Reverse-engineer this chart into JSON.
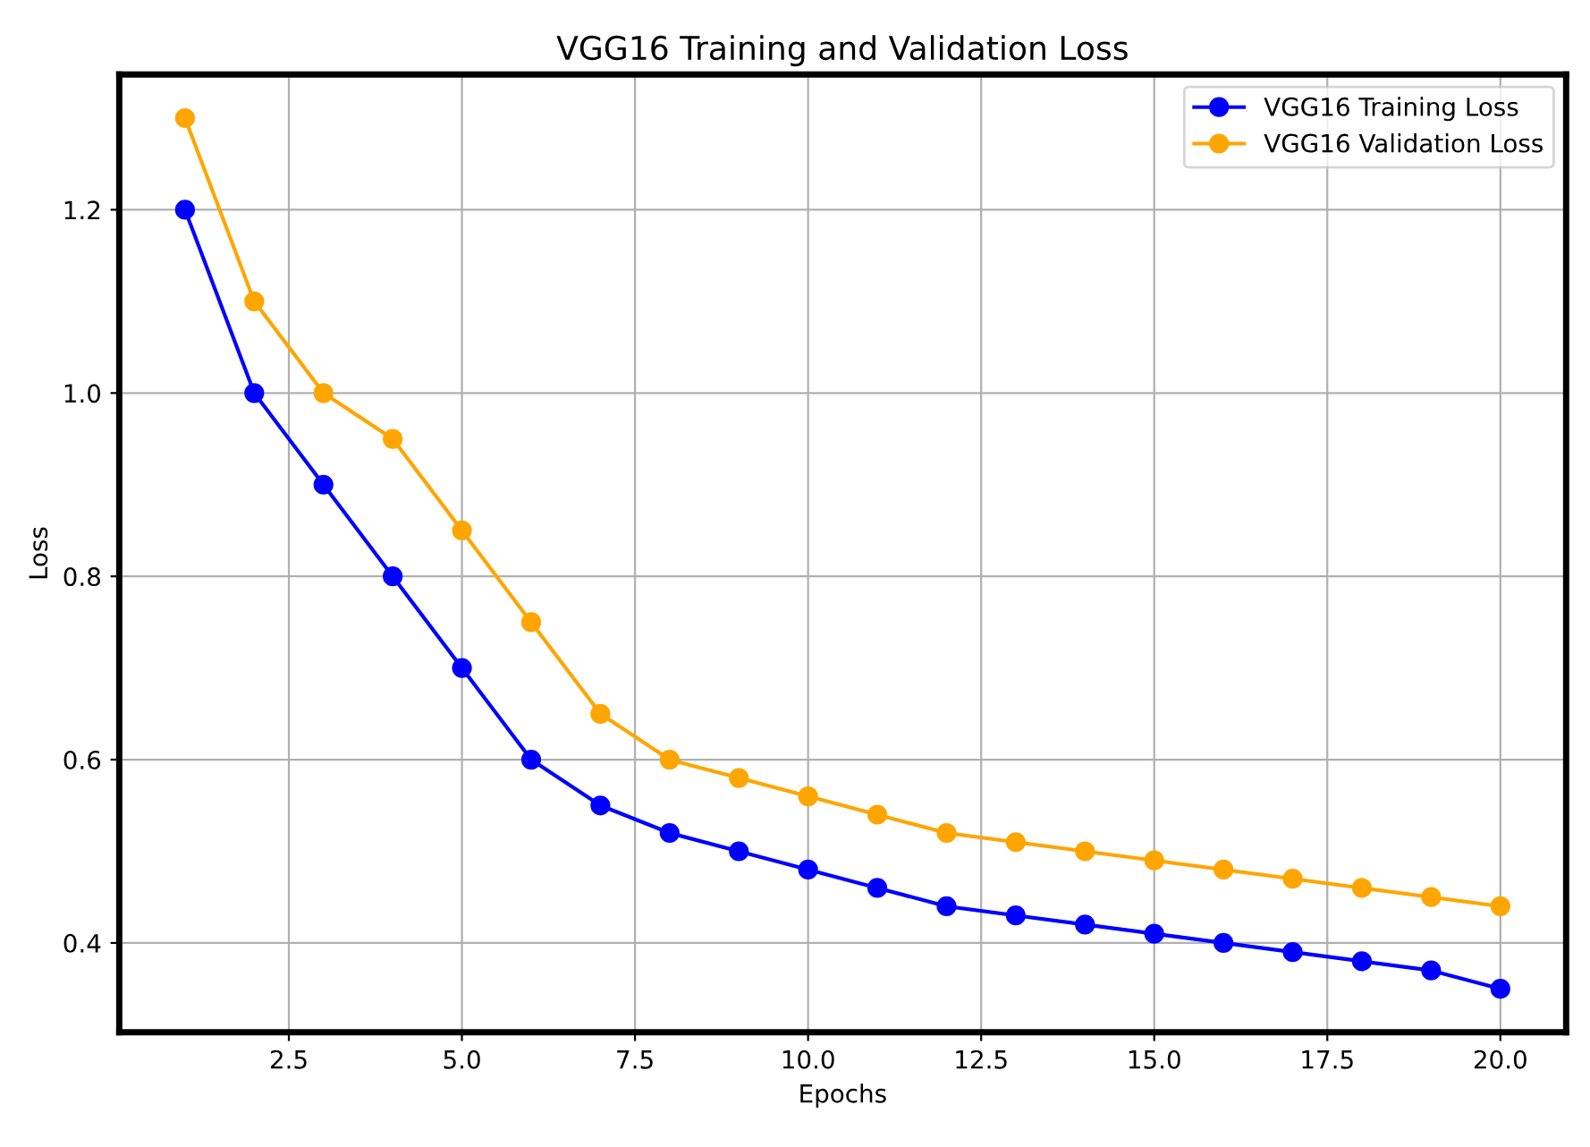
{
  "chart_data": {
    "type": "line",
    "title": "VGG16 Training and Validation Loss",
    "xlabel": "Epochs",
    "ylabel": "Loss",
    "x": [
      1,
      2,
      3,
      4,
      5,
      6,
      7,
      8,
      9,
      10,
      11,
      12,
      13,
      14,
      15,
      16,
      17,
      18,
      19,
      20
    ],
    "series": [
      {
        "name": "VGG16 Training Loss",
        "color": "#0000ff",
        "values": [
          1.2,
          1.0,
          0.9,
          0.8,
          0.7,
          0.6,
          0.55,
          0.52,
          0.5,
          0.48,
          0.46,
          0.44,
          0.43,
          0.42,
          0.41,
          0.4,
          0.39,
          0.38,
          0.37,
          0.35
        ]
      },
      {
        "name": "VGG16 Validation Loss",
        "color": "#ffa500",
        "values": [
          1.3,
          1.1,
          1.0,
          0.95,
          0.85,
          0.75,
          0.65,
          0.6,
          0.58,
          0.56,
          0.54,
          0.52,
          0.51,
          0.5,
          0.49,
          0.48,
          0.47,
          0.46,
          0.45,
          0.44
        ]
      }
    ],
    "xlim": [
      0.05,
      20.95
    ],
    "ylim": [
      0.3025,
      1.3475
    ],
    "xticks": [
      {
        "value": 2.5,
        "label": "2.5"
      },
      {
        "value": 5,
        "label": "5.0"
      },
      {
        "value": 7.5,
        "label": "7.5"
      },
      {
        "value": 10,
        "label": "10.0"
      },
      {
        "value": 12.5,
        "label": "12.5"
      },
      {
        "value": 15,
        "label": "15.0"
      },
      {
        "value": 17.5,
        "label": "17.5"
      },
      {
        "value": 20,
        "label": "20.0"
      }
    ],
    "yticks": [
      0.4,
      0.6,
      0.8,
      {
        "value": 1,
        "label": "1.0"
      },
      1.2
    ],
    "grid": true,
    "legend": "top right",
    "marker": "circle",
    "line_style": "solid"
  }
}
